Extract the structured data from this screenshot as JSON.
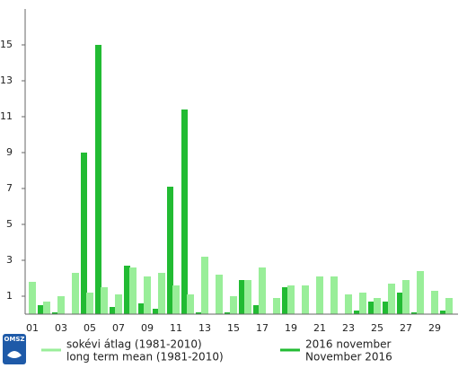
{
  "chart_data": {
    "type": "bar",
    "categories": [
      "01",
      null,
      "03",
      null,
      "05",
      null,
      "07",
      null,
      "09",
      null,
      "11",
      null,
      "13",
      null,
      "15",
      null,
      "17",
      null,
      "19",
      null,
      "21",
      null,
      "23",
      null,
      "25",
      null,
      "27",
      null,
      "29",
      null
    ],
    "series": [
      {
        "name": [
          "sokévi átlag (1981-2010)",
          "long term mean (1981-2010)"
        ],
        "color": "#99ee99",
        "values": [
          1.8,
          0.7,
          1.0,
          2.3,
          1.2,
          1.5,
          1.1,
          2.6,
          2.1,
          2.3,
          1.6,
          1.1,
          3.2,
          2.2,
          1.0,
          1.9,
          2.6,
          0.9,
          1.6,
          1.6,
          2.1,
          2.1,
          1.1,
          1.2,
          0.9,
          1.7,
          1.9,
          2.4,
          1.3,
          0.9
        ]
      },
      {
        "name": [
          "2016 november",
          "November 2016"
        ],
        "color": "#22bb33",
        "values": [
          0.5,
          0.1,
          0,
          9.0,
          15.0,
          0.4,
          2.7,
          0.6,
          0.3,
          7.1,
          11.4,
          0.1,
          0,
          0.1,
          1.9,
          0.5,
          0,
          1.5,
          0,
          0,
          0,
          0,
          0.2,
          0.7,
          0.7,
          1.2,
          0.1,
          0,
          0.2,
          0
        ]
      }
    ],
    "ylim": [
      0,
      17
    ],
    "yticks": [
      1,
      3,
      5,
      7,
      9,
      11,
      13,
      15
    ],
    "grid": false,
    "logo": "OMSZ"
  }
}
